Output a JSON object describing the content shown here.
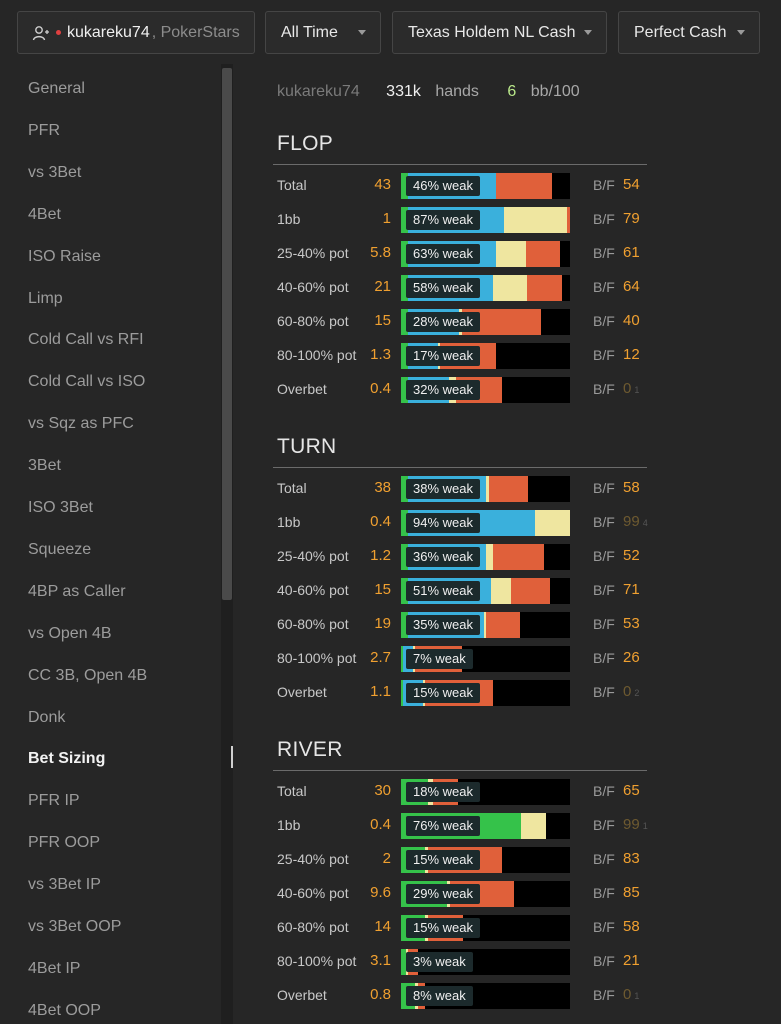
{
  "toolbar": {
    "player_name": "kukareku74",
    "site": ", PokerStars",
    "period": "All Time",
    "game": "Texas Holdem NL Cash",
    "mode": "Perfect Cash"
  },
  "sidebar": {
    "items": [
      "General",
      "PFR",
      "vs 3Bet",
      "4Bet",
      "ISO Raise",
      "Limp",
      "Cold Call vs RFI",
      "Cold Call vs ISO",
      "vs Sqz as PFC",
      "3Bet",
      "ISO 3Bet",
      "Squeeze",
      "4BP as Caller",
      "vs Open 4B",
      "CC 3B, Open 4B",
      "Donk",
      "Bet Sizing",
      "PFR IP",
      "PFR OOP",
      "vs 3Bet IP",
      "vs 3Bet OOP",
      "4Bet IP",
      "4Bet OOP"
    ],
    "active": "Bet Sizing"
  },
  "summary": {
    "player": "kukareku74",
    "hands_value": "331k",
    "hands_label": "hands",
    "bb_value": "6",
    "bb_label": "bb/100"
  },
  "colors": {
    "green": "#35c24a",
    "blue": "#3ab0dc",
    "yellow": "#efe6a0",
    "orange": "#e0603a",
    "value": "#f0a030",
    "dim_value": "#6e5a30"
  },
  "bf_label": "B/F",
  "sections": [
    {
      "title": "FLOP",
      "rows": [
        {
          "label": "Total",
          "value": "43",
          "weak": "46% weak",
          "bf": "54",
          "dim": false,
          "bf_sub": "",
          "segments": [
            {
              "c": "green",
              "w": 0.04
            },
            {
              "c": "blue",
              "w": 0.52
            },
            {
              "c": "yellow",
              "w": 0.0
            },
            {
              "c": "orange",
              "w": 0.33
            }
          ]
        },
        {
          "label": "1bb",
          "value": "1",
          "weak": "87% weak",
          "bf": "79",
          "dim": false,
          "bf_sub": "",
          "segments": [
            {
              "c": "green",
              "w": 0.04
            },
            {
              "c": "blue",
              "w": 0.57
            },
            {
              "c": "yellow",
              "w": 0.37
            },
            {
              "c": "orange",
              "w": 0.02
            }
          ]
        },
        {
          "label": "25-40% pot",
          "value": "5.8",
          "weak": "63% weak",
          "bf": "61",
          "dim": false,
          "bf_sub": "",
          "segments": [
            {
              "c": "green",
              "w": 0.04
            },
            {
              "c": "blue",
              "w": 0.52
            },
            {
              "c": "yellow",
              "w": 0.18
            },
            {
              "c": "orange",
              "w": 0.2
            }
          ]
        },
        {
          "label": "40-60% pot",
          "value": "21",
          "weak": "58% weak",
          "bf": "64",
          "dim": false,
          "bf_sub": "",
          "segments": [
            {
              "c": "green",
              "w": 0.04
            },
            {
              "c": "blue",
              "w": 0.5
            },
            {
              "c": "yellow",
              "w": 0.2
            },
            {
              "c": "orange",
              "w": 0.21
            }
          ]
        },
        {
          "label": "60-80% pot",
          "value": "15",
          "weak": "28% weak",
          "bf": "40",
          "dim": false,
          "bf_sub": "",
          "segments": [
            {
              "c": "green",
              "w": 0.04
            },
            {
              "c": "blue",
              "w": 0.3
            },
            {
              "c": "yellow",
              "w": 0.02
            },
            {
              "c": "orange",
              "w": 0.47
            }
          ]
        },
        {
          "label": "80-100% pot",
          "value": "1.3",
          "weak": "17% weak",
          "bf": "12",
          "dim": false,
          "bf_sub": "",
          "segments": [
            {
              "c": "green",
              "w": 0.04
            },
            {
              "c": "blue",
              "w": 0.18
            },
            {
              "c": "yellow",
              "w": 0.01
            },
            {
              "c": "orange",
              "w": 0.33
            }
          ]
        },
        {
          "label": "Overbet",
          "value": "0.4",
          "weak": "32% weak",
          "bf": "0",
          "dim": true,
          "bf_sub": "1",
          "segments": [
            {
              "c": "green",
              "w": 0.04
            },
            {
              "c": "blue",
              "w": 0.24
            },
            {
              "c": "yellow",
              "w": 0.04
            },
            {
              "c": "orange",
              "w": 0.27
            }
          ]
        }
      ]
    },
    {
      "title": "TURN",
      "rows": [
        {
          "label": "Total",
          "value": "38",
          "weak": "38% weak",
          "bf": "58",
          "dim": false,
          "bf_sub": "",
          "segments": [
            {
              "c": "green",
              "w": 0.04
            },
            {
              "c": "blue",
              "w": 0.46
            },
            {
              "c": "yellow",
              "w": 0.02
            },
            {
              "c": "orange",
              "w": 0.23
            }
          ]
        },
        {
          "label": "1bb",
          "value": "0.4",
          "weak": "94% weak",
          "bf": "99",
          "dim": true,
          "bf_sub": "4",
          "segments": [
            {
              "c": "green",
              "w": 0.04
            },
            {
              "c": "blue",
              "w": 0.75
            },
            {
              "c": "yellow",
              "w": 0.21
            },
            {
              "c": "orange",
              "w": 0.0
            }
          ]
        },
        {
          "label": "25-40% pot",
          "value": "1.2",
          "weak": "36% weak",
          "bf": "52",
          "dim": false,
          "bf_sub": "",
          "segments": [
            {
              "c": "green",
              "w": 0.04
            },
            {
              "c": "blue",
              "w": 0.46
            },
            {
              "c": "yellow",
              "w": 0.04
            },
            {
              "c": "orange",
              "w": 0.3
            }
          ]
        },
        {
          "label": "40-60% pot",
          "value": "15",
          "weak": "51% weak",
          "bf": "71",
          "dim": false,
          "bf_sub": "",
          "segments": [
            {
              "c": "green",
              "w": 0.04
            },
            {
              "c": "blue",
              "w": 0.49
            },
            {
              "c": "yellow",
              "w": 0.12
            },
            {
              "c": "orange",
              "w": 0.23
            }
          ]
        },
        {
          "label": "60-80% pot",
          "value": "19",
          "weak": "35% weak",
          "bf": "53",
          "dim": false,
          "bf_sub": "",
          "segments": [
            {
              "c": "green",
              "w": 0.04
            },
            {
              "c": "blue",
              "w": 0.45
            },
            {
              "c": "yellow",
              "w": 0.01
            },
            {
              "c": "orange",
              "w": 0.2
            }
          ]
        },
        {
          "label": "80-100% pot",
          "value": "2.7",
          "weak": "7% weak",
          "bf": "26",
          "dim": false,
          "bf_sub": "",
          "segments": [
            {
              "c": "green",
              "w": 0.01
            },
            {
              "c": "blue",
              "w": 0.06
            },
            {
              "c": "yellow",
              "w": 0.01
            },
            {
              "c": "orange",
              "w": 0.28
            }
          ]
        },
        {
          "label": "Overbet",
          "value": "1.1",
          "weak": "15% weak",
          "bf": "0",
          "dim": true,
          "bf_sub": "2",
          "segments": [
            {
              "c": "green",
              "w": 0.01
            },
            {
              "c": "blue",
              "w": 0.12
            },
            {
              "c": "yellow",
              "w": 0.01
            },
            {
              "c": "orange",
              "w": 0.4
            }
          ]
        }
      ]
    },
    {
      "title": "RIVER",
      "rows": [
        {
          "label": "Total",
          "value": "30",
          "weak": "18% weak",
          "bf": "65",
          "dim": false,
          "bf_sub": "",
          "segments": [
            {
              "c": "green",
              "w": 0.16
            },
            {
              "c": "blue",
              "w": 0.0
            },
            {
              "c": "yellow",
              "w": 0.03
            },
            {
              "c": "orange",
              "w": 0.15
            }
          ]
        },
        {
          "label": "1bb",
          "value": "0.4",
          "weak": "76% weak",
          "bf": "99",
          "dim": true,
          "bf_sub": "1",
          "segments": [
            {
              "c": "green",
              "w": 0.71
            },
            {
              "c": "blue",
              "w": 0.0
            },
            {
              "c": "yellow",
              "w": 0.15
            },
            {
              "c": "orange",
              "w": 0.0
            }
          ]
        },
        {
          "label": "25-40% pot",
          "value": "2",
          "weak": "15% weak",
          "bf": "83",
          "dim": false,
          "bf_sub": "",
          "segments": [
            {
              "c": "green",
              "w": 0.14
            },
            {
              "c": "blue",
              "w": 0.0
            },
            {
              "c": "yellow",
              "w": 0.02
            },
            {
              "c": "orange",
              "w": 0.44
            }
          ]
        },
        {
          "label": "40-60% pot",
          "value": "9.6",
          "weak": "29% weak",
          "bf": "85",
          "dim": false,
          "bf_sub": "",
          "segments": [
            {
              "c": "green",
              "w": 0.27
            },
            {
              "c": "blue",
              "w": 0.0
            },
            {
              "c": "yellow",
              "w": 0.02
            },
            {
              "c": "orange",
              "w": 0.38
            }
          ]
        },
        {
          "label": "60-80% pot",
          "value": "14",
          "weak": "15% weak",
          "bf": "58",
          "dim": false,
          "bf_sub": "",
          "segments": [
            {
              "c": "green",
              "w": 0.14
            },
            {
              "c": "blue",
              "w": 0.0
            },
            {
              "c": "yellow",
              "w": 0.02
            },
            {
              "c": "orange",
              "w": 0.21
            }
          ]
        },
        {
          "label": "80-100% pot",
          "value": "3.1",
          "weak": "3% weak",
          "bf": "21",
          "dim": false,
          "bf_sub": "",
          "segments": [
            {
              "c": "green",
              "w": 0.03
            },
            {
              "c": "blue",
              "w": 0.0
            },
            {
              "c": "yellow",
              "w": 0.01
            },
            {
              "c": "orange",
              "w": 0.06
            }
          ]
        },
        {
          "label": "Overbet",
          "value": "0.8",
          "weak": "8% weak",
          "bf": "0",
          "dim": true,
          "bf_sub": "1",
          "segments": [
            {
              "c": "green",
              "w": 0.08
            },
            {
              "c": "blue",
              "w": 0.0
            },
            {
              "c": "yellow",
              "w": 0.02
            },
            {
              "c": "orange",
              "w": 0.04
            }
          ]
        }
      ]
    }
  ]
}
